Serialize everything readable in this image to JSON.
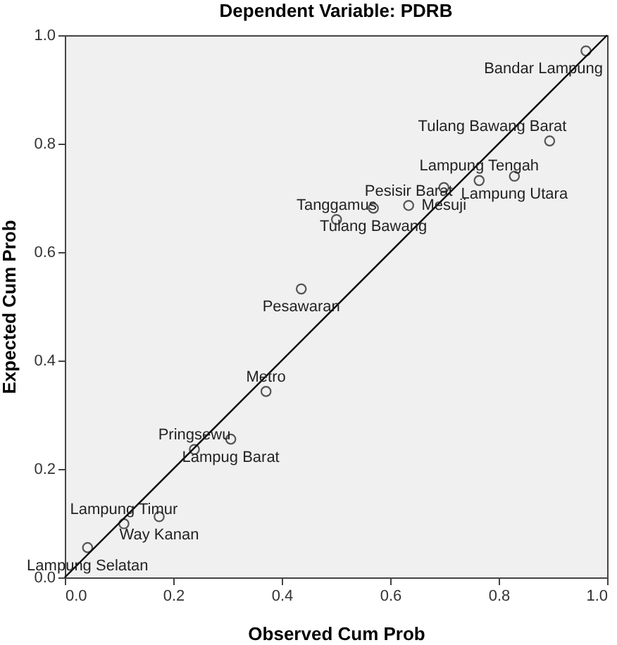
{
  "chart_data": {
    "type": "scatter",
    "title": "Dependent Variable: PDRB",
    "xlabel": "Observed Cum Prob",
    "ylabel": "Expected Cum Prob",
    "xlim": [
      0,
      1
    ],
    "ylim": [
      0,
      1
    ],
    "xticks": [
      {
        "value": 0,
        "label": "0.0"
      },
      {
        "value": 0.2,
        "label": "0.2"
      },
      {
        "value": 0.4,
        "label": "0.4"
      },
      {
        "value": 0.6,
        "label": "0.6"
      },
      {
        "value": 0.8,
        "label": "0.8"
      },
      {
        "value": 1,
        "label": "1.0"
      }
    ],
    "yticks": [
      {
        "value": 0,
        "label": "0.0"
      },
      {
        "value": 0.2,
        "label": "0.2"
      },
      {
        "value": 0.4,
        "label": "0.4"
      },
      {
        "value": 0.6,
        "label": "0.6"
      },
      {
        "value": 0.8,
        "label": "0.8"
      },
      {
        "value": 1,
        "label": "1.0"
      }
    ],
    "series": [
      {
        "marker": "circle",
        "color": "#555555",
        "x": [
          0.042,
          0.109,
          0.174,
          0.239,
          0.306,
          0.371,
          0.436,
          0.501,
          0.569,
          0.634,
          0.699,
          0.764,
          0.829,
          0.894,
          0.961
        ],
        "values": [
          0.055,
          0.099,
          0.112,
          0.236,
          0.255,
          0.343,
          0.532,
          0.66,
          0.681,
          0.686,
          0.719,
          0.732,
          0.74,
          0.805,
          0.971
        ]
      },
      {
        "type": "line",
        "color": "#000000",
        "x": [
          0,
          1
        ],
        "values": [
          0,
          1
        ]
      }
    ],
    "annotations": [
      {
        "text": "Lampung Selatan",
        "x": 0.042,
        "y": 0.055
      },
      {
        "text": "Lampung Timur",
        "x": 0.109,
        "y": 0.099
      },
      {
        "text": "Way Kanan",
        "x": 0.174,
        "y": 0.112
      },
      {
        "text": "Pringsewu",
        "x": 0.239,
        "y": 0.236
      },
      {
        "text": "Lampug Barat",
        "x": 0.306,
        "y": 0.255
      },
      {
        "text": "Metro",
        "x": 0.371,
        "y": 0.343
      },
      {
        "text": "Pesawaran",
        "x": 0.436,
        "y": 0.532
      },
      {
        "text": "Tanggamus",
        "x": 0.501,
        "y": 0.66
      },
      {
        "text": "Tulang Bawang",
        "x": 0.569,
        "y": 0.681
      },
      {
        "text": "Pesisir Barat",
        "x": 0.634,
        "y": 0.686
      },
      {
        "text": "Mesuji",
        "x": 0.699,
        "y": 0.719
      },
      {
        "text": "Lampung Tengah",
        "x": 0.764,
        "y": 0.732
      },
      {
        "text": "Lampung Utara",
        "x": 0.829,
        "y": 0.74
      },
      {
        "text": "Tulang Bawang Barat",
        "x": 0.894,
        "y": 0.805
      },
      {
        "text": "Bandar Lampung",
        "x": 0.961,
        "y": 0.971
      }
    ]
  }
}
